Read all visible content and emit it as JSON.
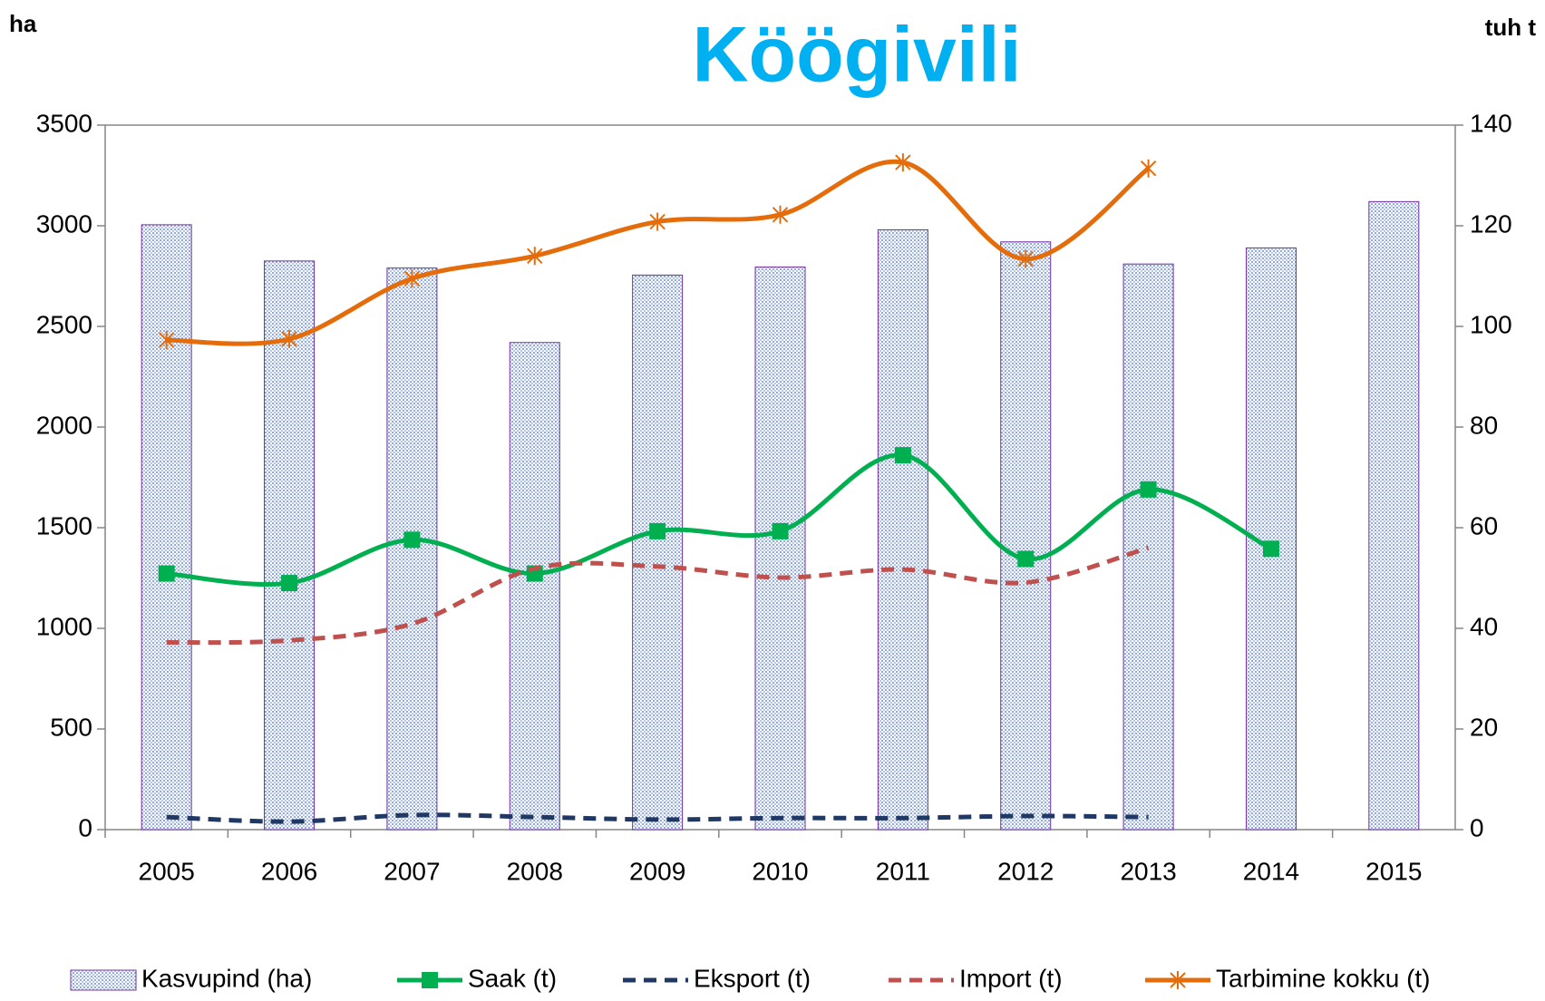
{
  "chart_data": {
    "type": "bar",
    "title": "Köögivili",
    "y_label": "ha",
    "y2_label": "tuh t",
    "categories": [
      "2005",
      "2006",
      "2007",
      "2008",
      "2009",
      "2010",
      "2011",
      "2012",
      "2013",
      "2014",
      "2015"
    ],
    "series": [
      {
        "name": "Kasvupind (ha)",
        "type": "bar",
        "color": "#8ea9db",
        "values": [
          3005,
          2825,
          2790,
          2420,
          2755,
          2795,
          2980,
          2920,
          2810,
          2890,
          3120
        ]
      },
      {
        "name": "Saak (t)",
        "type": "line",
        "axis": "y2",
        "color": "#00b050",
        "marker": "square",
        "values": [
          50.9,
          49.0,
          57.6,
          50.9,
          59.3,
          59.3,
          74.4,
          53.8,
          67.6,
          55.8,
          null
        ]
      },
      {
        "name": "Eksport (t)",
        "type": "line",
        "axis": "y2",
        "color": "#1f3864",
        "style": "dashed",
        "values": [
          2.5,
          1.6,
          2.9,
          2.5,
          2.0,
          2.3,
          2.3,
          2.7,
          2.5,
          null,
          null
        ]
      },
      {
        "name": "Import (t)",
        "type": "line",
        "axis": "y2",
        "color": "#c0504d",
        "style": "dashed",
        "values": [
          37.2,
          37.6,
          40.9,
          51.9,
          52.3,
          50.1,
          51.7,
          49.1,
          56.0,
          null,
          null
        ]
      },
      {
        "name": "Tarbimine kokku (t)",
        "type": "line",
        "axis": "y2",
        "color": "#e46c0a",
        "marker": "asterisk",
        "values": [
          97.3,
          97.5,
          109.5,
          114.0,
          120.8,
          122.2,
          132.6,
          113.4,
          131.4,
          null,
          null
        ]
      }
    ],
    "ylim": [
      0,
      3500
    ],
    "yticks": [
      0,
      500,
      1000,
      1500,
      2000,
      2500,
      3000,
      3500
    ],
    "y2lim": [
      0,
      140
    ],
    "y2ticks": [
      0,
      20,
      40,
      60,
      80,
      100,
      120,
      140
    ],
    "grid": false,
    "legend": "bottom"
  }
}
